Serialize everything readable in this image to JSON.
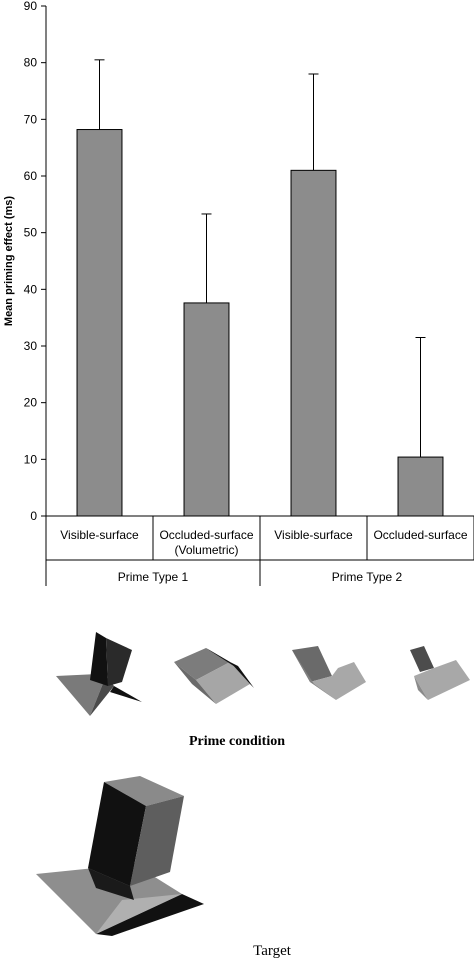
{
  "chart_data": {
    "type": "bar",
    "ylabel": "Mean priming effect (ms)",
    "ylim": [
      0,
      90
    ],
    "yticks": [
      "0",
      "10",
      "20",
      "30",
      "40",
      "50",
      "60",
      "70",
      "80",
      "90"
    ],
    "categories": [
      [
        "Visible-surface"
      ],
      [
        "Occluded-surface",
        "(Volumetric)"
      ],
      [
        "Visible-surface"
      ],
      [
        "Occluded-surface"
      ]
    ],
    "groups": [
      {
        "label": "Prime Type 1",
        "members": [
          0,
          1
        ]
      },
      {
        "label": "Prime Type 2",
        "members": [
          2,
          3
        ]
      }
    ],
    "values": [
      68.2,
      37.6,
      61.0,
      10.4
    ],
    "error_upper": [
      80.5,
      53.3,
      78.0,
      31.5
    ],
    "grid": false,
    "bar_color": "#8c8c8c"
  },
  "figure": {
    "prime_caption": "Prime condition",
    "target_caption": "Target"
  },
  "colors": {
    "dark_face": "#1c1c1c",
    "mid_face": "#6e6e6e",
    "light_face": "#a9a9a9",
    "shadow": "#0a0a0a"
  }
}
